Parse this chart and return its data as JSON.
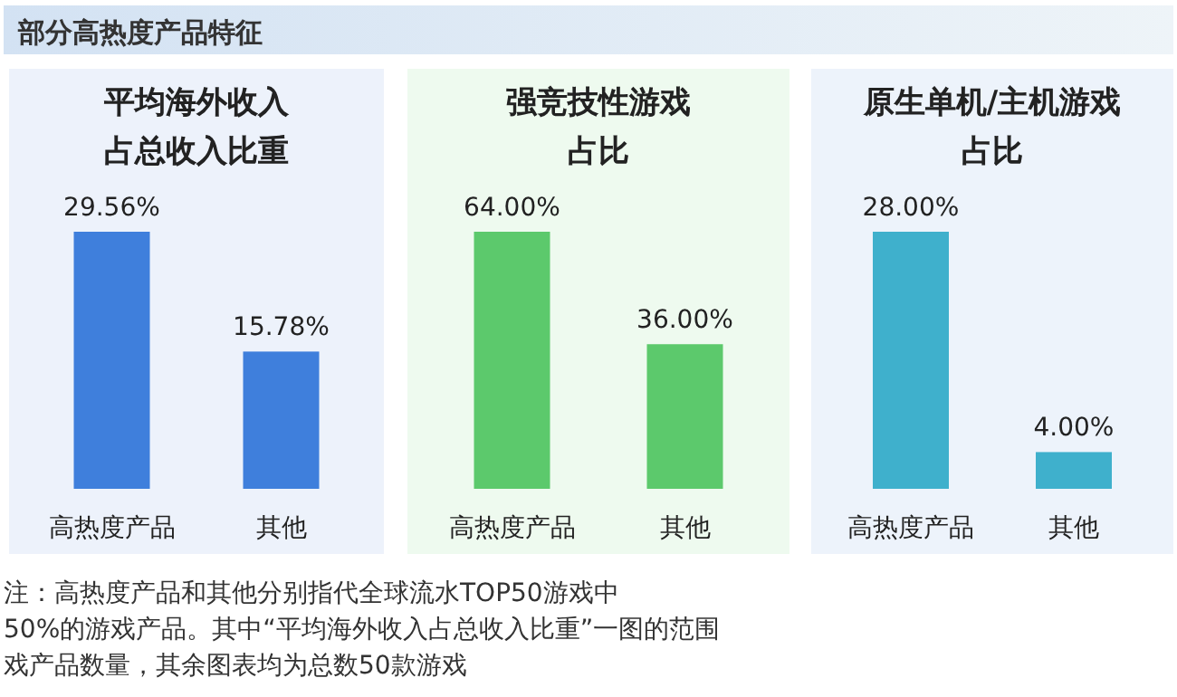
{
  "chart_data": [
    {
      "type": "other",
      "title": "部分高热度产品特征",
      "annotations": [
        "注：高热度产品和其他分别指代全球流水TOP50游戏中",
        "50%的游戏产品。其中“平均海外收入占总收入比重”一图的范围",
        "戏产品数量，其余图表均为总数50款游戏"
      ]
    },
    {
      "type": "bar",
      "title": "平均海外收入占总收入比重",
      "categories": [
        "高热度产品",
        "其他"
      ],
      "values": [
        29.56,
        15.78
      ],
      "value_labels": [
        "29.56%",
        "15.78%"
      ],
      "color": "#3f7fdc"
    },
    {
      "type": "bar",
      "title": "强竞技性游戏占比",
      "categories": [
        "高热度产品",
        "其他"
      ],
      "values": [
        64.0,
        36.0
      ],
      "value_labels": [
        "64.00%",
        "36.00%"
      ],
      "color": "#5cc96c"
    },
    {
      "type": "bar",
      "title": "原生单机/主机游戏占比",
      "categories": [
        "高热度产品",
        "其他"
      ],
      "values": [
        28.0,
        4.0
      ],
      "value_labels": [
        "28.00%",
        "4.00%"
      ],
      "color": "#3fb0cc"
    }
  ]
}
